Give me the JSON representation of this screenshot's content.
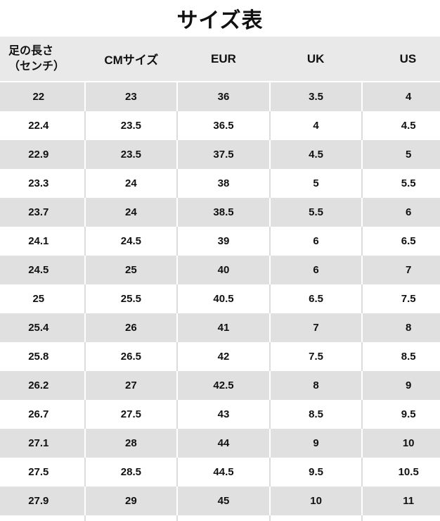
{
  "title": "サイズ表",
  "colors": {
    "header_bg": "#e9e9e9",
    "row_gray": "#e0e0e0",
    "divider": "#dcdcdc",
    "text": "#111111"
  },
  "table": {
    "columns": [
      {
        "label": "足の長さ",
        "label2": "（センチ）"
      },
      {
        "label": "CMサイズ"
      },
      {
        "label": "EUR"
      },
      {
        "label": "UK"
      },
      {
        "label": "US"
      }
    ]
  },
  "chart_data": {
    "type": "table",
    "title": "サイズ表",
    "columns": [
      "足の長さ（センチ）",
      "CMサイズ",
      "EUR",
      "UK",
      "US"
    ],
    "rows": [
      [
        22,
        23,
        36,
        3.5,
        4
      ],
      [
        22.4,
        23.5,
        36.5,
        4,
        4.5
      ],
      [
        22.9,
        23.5,
        37.5,
        4.5,
        5
      ],
      [
        23.3,
        24,
        38,
        5,
        5.5
      ],
      [
        23.7,
        24,
        38.5,
        5.5,
        6
      ],
      [
        24.1,
        24.5,
        39,
        6,
        6.5
      ],
      [
        24.5,
        25,
        40,
        6,
        7
      ],
      [
        25,
        25.5,
        40.5,
        6.5,
        7.5
      ],
      [
        25.4,
        26,
        41,
        7,
        8
      ],
      [
        25.8,
        26.5,
        42,
        7.5,
        8.5
      ],
      [
        26.2,
        27,
        42.5,
        8,
        9
      ],
      [
        26.7,
        27.5,
        43,
        8.5,
        9.5
      ],
      [
        27.1,
        28,
        44,
        9,
        10
      ],
      [
        27.5,
        28.5,
        44.5,
        9.5,
        10.5
      ],
      [
        27.9,
        29,
        45,
        10,
        11
      ]
    ]
  }
}
